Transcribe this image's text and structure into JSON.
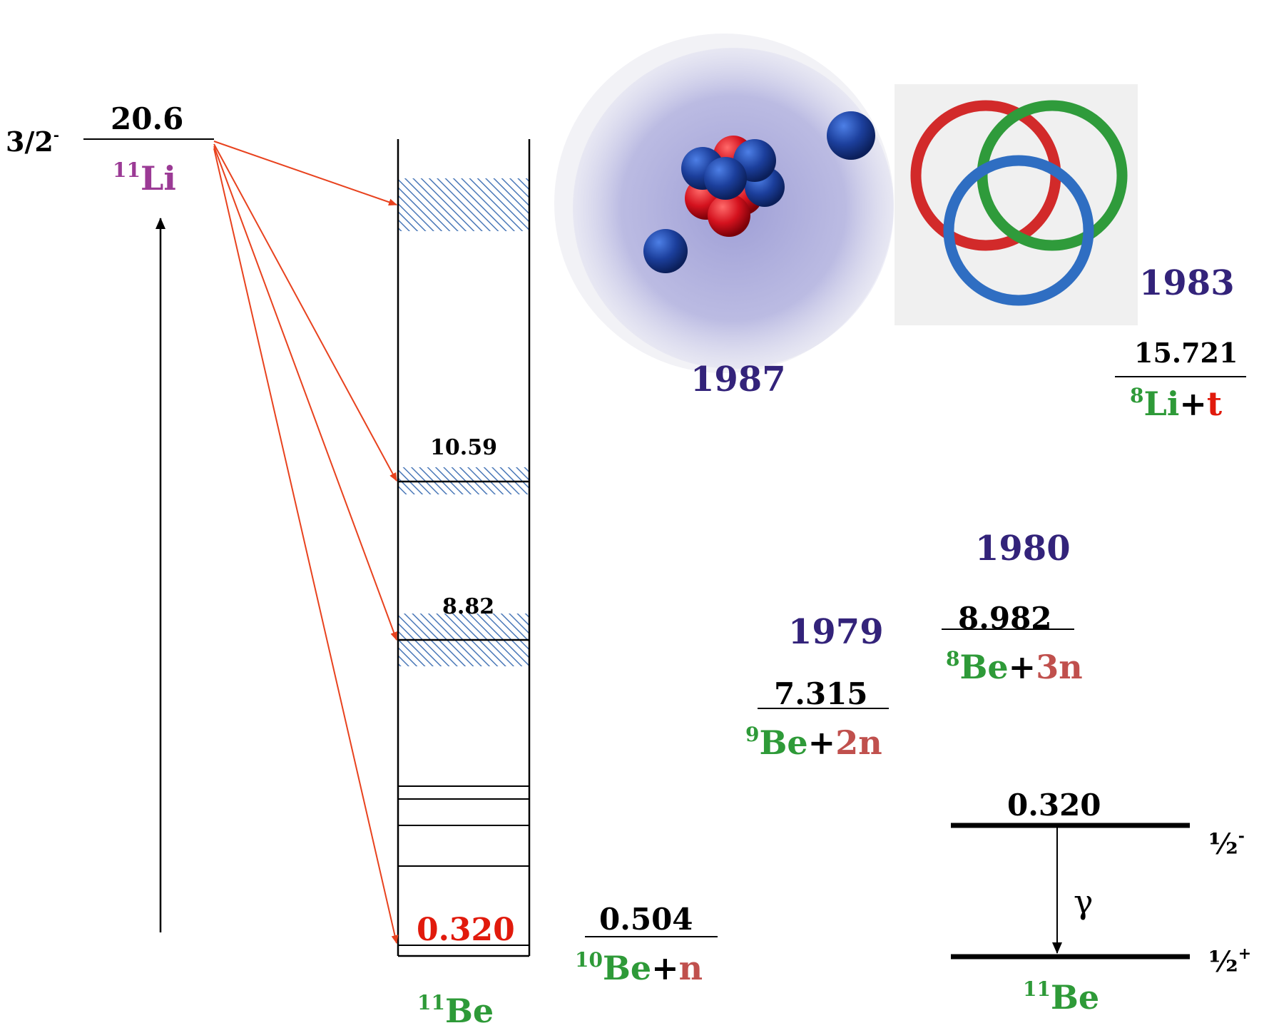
{
  "colors": {
    "year": "#33237a",
    "purple": "#9b3a95",
    "green": "#2e9a38",
    "brick": "#c0504d",
    "red": "#e11a0c",
    "arrow": "#e8421e",
    "hatch": "#4a78b8",
    "black": "#000000"
  },
  "li11": {
    "spin": "3/2",
    "spin_sign": "-",
    "energy": "20.6",
    "mass": "11",
    "symbol": "Li"
  },
  "be11_column": {
    "level_hi": "10.59",
    "level_mid": "8.82",
    "level_low": "0.320",
    "mass": "11",
    "symbol": "Be"
  },
  "thresholds": [
    {
      "id": "be10n",
      "energy": "0.504",
      "mass": "10",
      "core": "Be",
      "plus": "+",
      "partner": "n"
    },
    {
      "id": "be9_2n",
      "energy": "7.315",
      "mass": "9",
      "core": "Be",
      "plus": "+",
      "partner": "2n",
      "year": "1979"
    },
    {
      "id": "be8_3n",
      "energy": "8.982",
      "mass": "8",
      "core": "Be",
      "plus": "+",
      "partner": "3n",
      "year": "1980"
    },
    {
      "id": "li8_t",
      "energy": "15.721",
      "mass": "8",
      "core": "Li",
      "plus": "+",
      "partner": "t",
      "year": "1983"
    }
  ],
  "halo_year": "1987",
  "gamma_panel": {
    "energy": "0.320",
    "gamma": "γ",
    "upper_spin": "½",
    "upper_sign": "-",
    "lower_spin": "½",
    "lower_sign": "+",
    "mass": "11",
    "symbol": "Be"
  },
  "icons": [
    "halo-nucleus-icon",
    "borromean-rings-icon"
  ]
}
